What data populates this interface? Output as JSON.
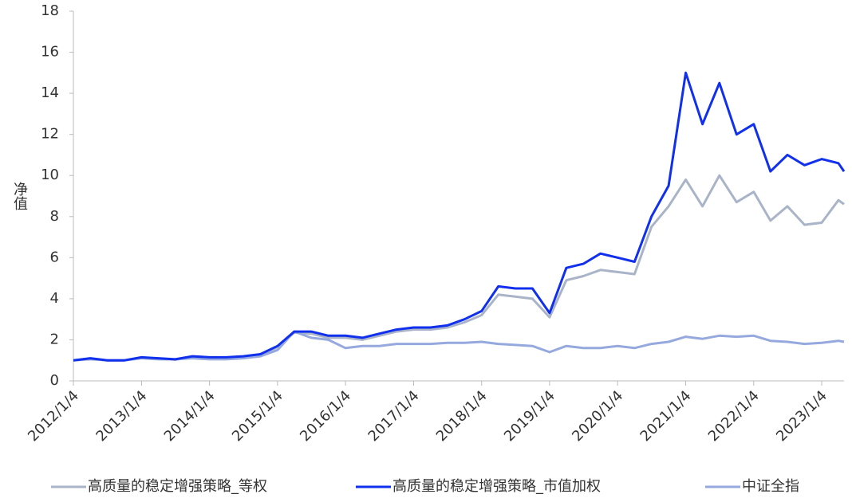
{
  "chart_data": {
    "type": "line",
    "y_label": "净值",
    "x": [
      "2012/1/4",
      "2012/4/4",
      "2012/7/4",
      "2012/10/4",
      "2013/1/4",
      "2013/4/4",
      "2013/7/4",
      "2013/10/4",
      "2014/1/4",
      "2014/4/4",
      "2014/7/4",
      "2014/10/4",
      "2015/1/4",
      "2015/4/4",
      "2015/7/4",
      "2015/10/4",
      "2016/1/4",
      "2016/4/4",
      "2016/7/4",
      "2016/10/4",
      "2017/1/4",
      "2017/4/4",
      "2017/7/4",
      "2017/10/4",
      "2018/1/4",
      "2018/4/4",
      "2018/7/4",
      "2018/10/4",
      "2019/1/4",
      "2019/4/4",
      "2019/7/4",
      "2019/10/4",
      "2020/1/4",
      "2020/4/4",
      "2020/7/4",
      "2020/10/4",
      "2021/1/4",
      "2021/4/4",
      "2021/7/4",
      "2021/10/4",
      "2022/1/4",
      "2022/4/4",
      "2022/7/4",
      "2022/10/4",
      "2023/1/4",
      "2023/4/4",
      "2023/5/4"
    ],
    "series": [
      {
        "name": "高质量的稳定增强策略_等权",
        "color": "#a9b4c8",
        "values": [
          1.0,
          1.08,
          1.0,
          1.0,
          1.12,
          1.08,
          1.03,
          1.15,
          1.12,
          1.12,
          1.15,
          1.25,
          1.65,
          2.35,
          2.3,
          2.1,
          2.1,
          2.0,
          2.2,
          2.4,
          2.5,
          2.5,
          2.6,
          2.85,
          3.2,
          4.2,
          4.1,
          4.0,
          3.1,
          4.9,
          5.1,
          5.4,
          5.3,
          5.2,
          7.5,
          8.5,
          9.8,
          8.5,
          10.0,
          8.7,
          9.2,
          7.8,
          8.5,
          7.6,
          7.7,
          8.8,
          8.6
        ]
      },
      {
        "name": "高质量的稳定增强策略_市值加权",
        "color": "#1030ee",
        "values": [
          1.0,
          1.1,
          1.0,
          1.0,
          1.15,
          1.1,
          1.05,
          1.2,
          1.15,
          1.15,
          1.2,
          1.3,
          1.7,
          2.4,
          2.4,
          2.2,
          2.2,
          2.1,
          2.3,
          2.5,
          2.6,
          2.6,
          2.7,
          3.0,
          3.4,
          4.6,
          4.5,
          4.5,
          3.3,
          5.5,
          5.7,
          6.2,
          6.0,
          5.8,
          8.0,
          9.5,
          15.0,
          12.5,
          14.5,
          12.0,
          12.5,
          10.2,
          11.0,
          10.5,
          10.8,
          10.6,
          10.2
        ]
      },
      {
        "name": "中证全指",
        "color": "#96a9de",
        "values": [
          1.0,
          1.05,
          1.0,
          1.0,
          1.1,
          1.05,
          1.05,
          1.1,
          1.05,
          1.05,
          1.1,
          1.2,
          1.5,
          2.4,
          2.1,
          2.0,
          1.6,
          1.7,
          1.7,
          1.8,
          1.8,
          1.8,
          1.85,
          1.85,
          1.9,
          1.8,
          1.75,
          1.7,
          1.4,
          1.7,
          1.6,
          1.6,
          1.7,
          1.6,
          1.8,
          1.9,
          2.15,
          2.05,
          2.2,
          2.15,
          2.2,
          1.95,
          1.9,
          1.8,
          1.85,
          1.95,
          1.9
        ]
      }
    ],
    "xlim": [
      "2012/1/4",
      "2023/5/4"
    ],
    "xticks": [
      "2012/1/4",
      "2013/1/4",
      "2014/1/4",
      "2015/1/4",
      "2016/1/4",
      "2017/1/4",
      "2018/1/4",
      "2019/1/4",
      "2020/1/4",
      "2021/1/4",
      "2022/1/4",
      "2023/1/4"
    ],
    "ylim": [
      0,
      18
    ],
    "yticks": [
      0,
      2,
      4,
      6,
      8,
      10,
      12,
      14,
      16,
      18
    ]
  }
}
